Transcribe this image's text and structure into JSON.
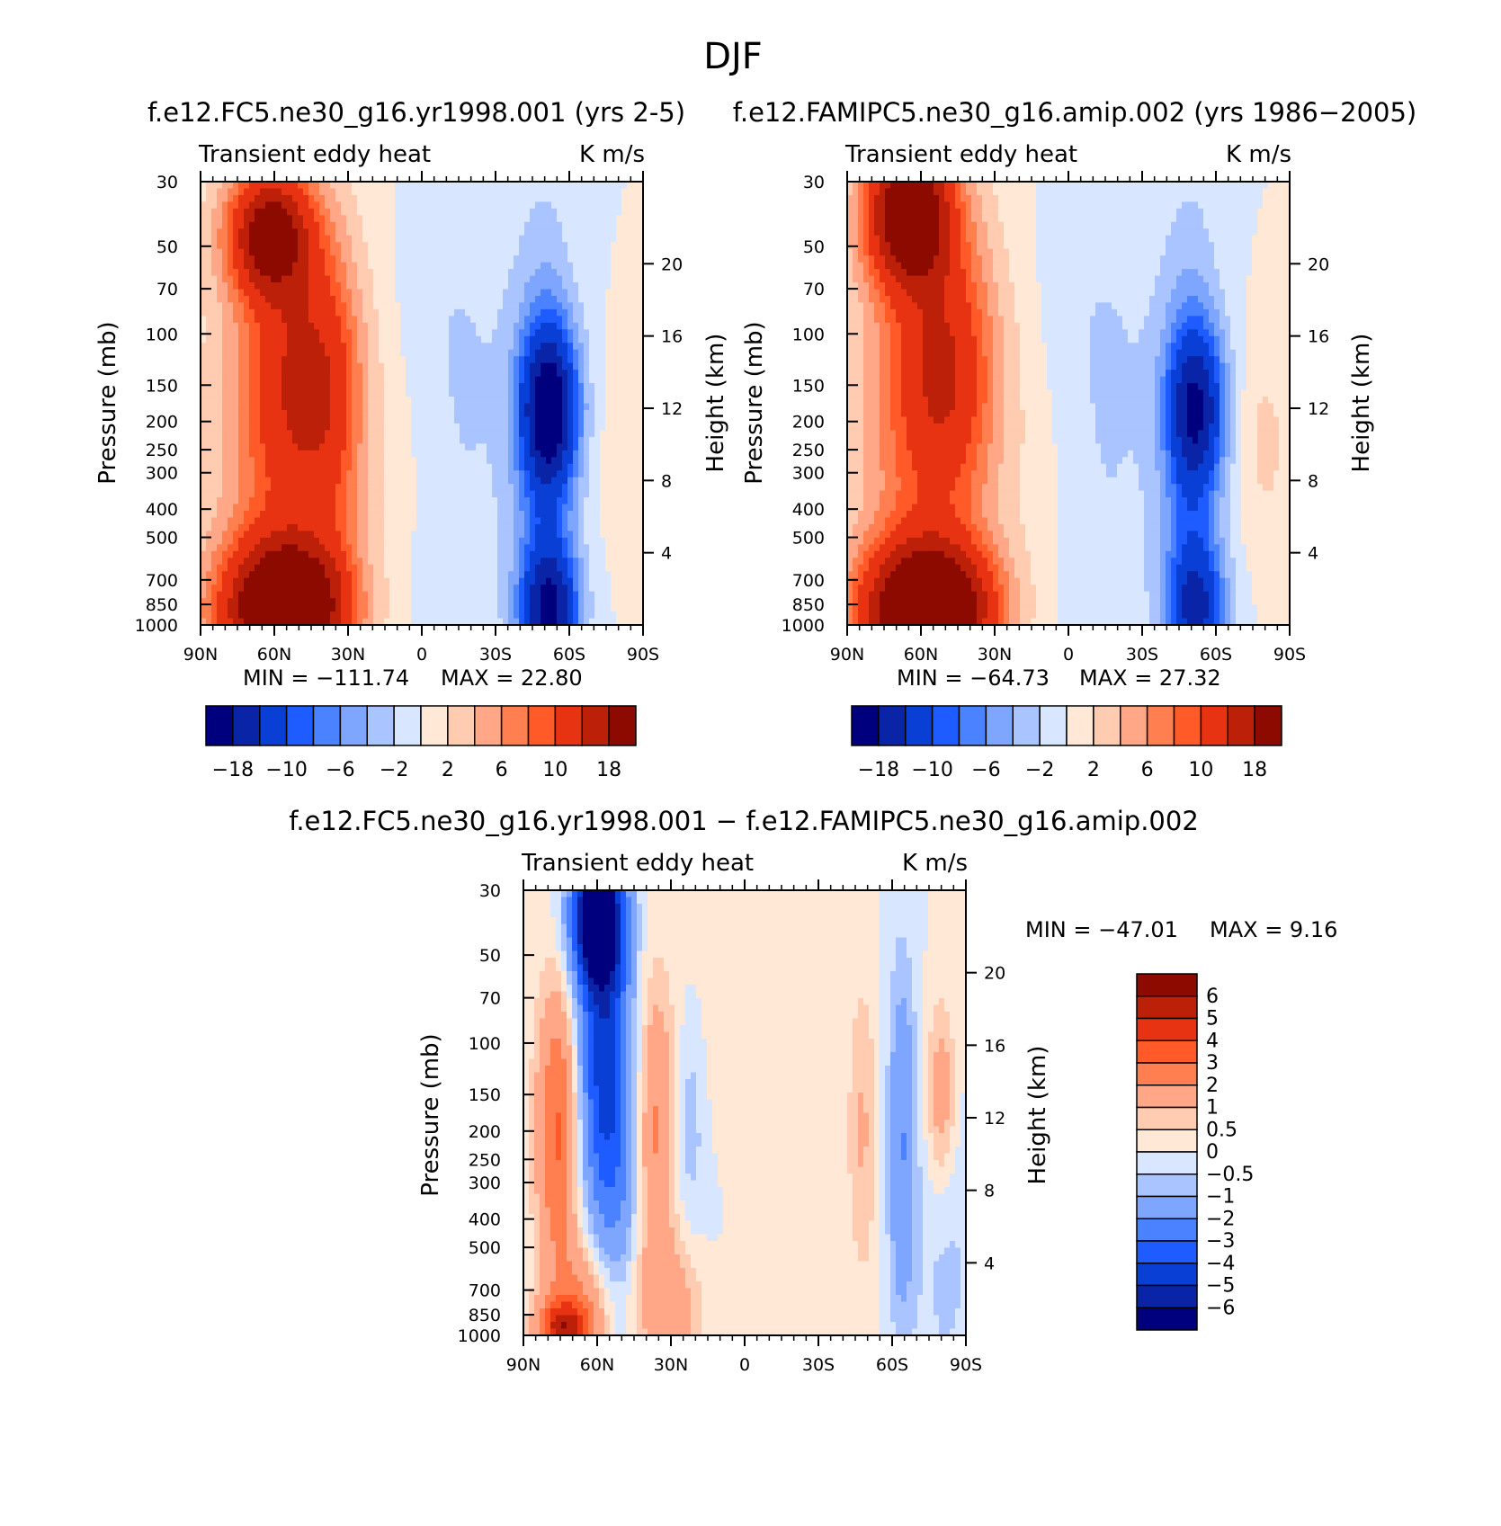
{
  "figure": {
    "title": "DJF"
  },
  "common": {
    "subtitle_left": "Transient eddy heat",
    "subtitle_right": "K m/s",
    "ylabel": "Pressure (mb)",
    "ylabel_right": "Height (km)",
    "pressure_ticks": [
      30,
      50,
      70,
      100,
      150,
      200,
      250,
      300,
      400,
      500,
      700,
      850,
      1000
    ],
    "pressure_tick_labels": [
      "30",
      "50",
      "70",
      "100",
      "150",
      "200",
      "250",
      "300",
      "400",
      "500",
      "700",
      "850",
      "1000"
    ],
    "height_ticks": [
      4,
      8,
      12,
      16,
      20
    ],
    "height_tick_labels": [
      "4",
      "8",
      "12",
      "16",
      "20"
    ],
    "lat_ticks": [
      90,
      60,
      30,
      0,
      -30,
      -60,
      -90
    ],
    "lat_tick_labels": [
      "90N",
      "60N",
      "30N",
      "0",
      "30S",
      "60S",
      "90S"
    ]
  },
  "colors": {
    "abs_scale": [
      "#00007f",
      "#0a24a8",
      "#0a3fd6",
      "#1f5cff",
      "#4a82ff",
      "#7fa6ff",
      "#a9c4ff",
      "#d8e6ff",
      "#ffe8d6",
      "#ffcbb1",
      "#ffa787",
      "#ff7f50",
      "#ff5a28",
      "#e83312",
      "#bd2009",
      "#8c0a00"
    ],
    "diff_scale": [
      "#00007f",
      "#0a24a8",
      "#0a3fd6",
      "#1f5cff",
      "#4a82ff",
      "#7fa6ff",
      "#a9c4ff",
      "#d8e6ff",
      "#ffe8d6",
      "#ffcbb1",
      "#ffa787",
      "#ff7f50",
      "#ff5a28",
      "#e83312",
      "#bd2009",
      "#8c0a00"
    ]
  },
  "chart_data": [
    {
      "type": "heatmap",
      "title": "f.e12.FC5.ne30_g16.yr1998.001 (yrs 2-5)",
      "subtitle": "Transient eddy heat",
      "units": "K m/s",
      "xlabel": "",
      "ylabel": "Pressure (mb)",
      "ylabel_right": "Height (km)",
      "x_range": [
        90,
        -90
      ],
      "y_range": [
        1000,
        30
      ],
      "y_scale": "log",
      "min_label": "MIN = −111.74",
      "max_label": "MAX = 22.80",
      "min": -111.74,
      "max": 22.8,
      "colorbar": {
        "levels": [
          -18,
          -14,
          -10,
          -8,
          -6,
          -4,
          -2,
          0,
          2,
          4,
          6,
          8,
          10,
          14,
          18
        ],
        "tick_labels": [
          "−18",
          "−10",
          "−6",
          "−2",
          "2",
          "6",
          "10",
          "18"
        ],
        "orientation": "horizontal"
      },
      "features": [
        {
          "lat": 62,
          "p": 45,
          "value": 18,
          "sx": 12,
          "sy": 0.35
        },
        {
          "lat": 55,
          "p": 300,
          "value": 7,
          "sx": 22,
          "sy": 1.6
        },
        {
          "lat": 48,
          "p": 140,
          "value": 9,
          "sx": 15,
          "sy": 0.7
        },
        {
          "lat": 52,
          "p": 880,
          "value": 16,
          "sx": 16,
          "sy": 0.35
        },
        {
          "lat": 62,
          "p": 900,
          "value": 10,
          "sx": 18,
          "sy": 0.4
        },
        {
          "lat": 36,
          "p": 200,
          "value": 3,
          "sx": 8,
          "sy": 0.9
        },
        {
          "lat": -52,
          "p": 180,
          "value": -18,
          "sx": 8,
          "sy": 0.45
        },
        {
          "lat": -52,
          "p": 880,
          "value": -16,
          "sx": 8,
          "sy": 0.35
        },
        {
          "lat": -50,
          "p": 300,
          "value": -6,
          "sx": 9,
          "sy": 1.4
        },
        {
          "lat": -12,
          "p": 100,
          "value": -2,
          "sx": 20,
          "sy": 0.9
        },
        {
          "lat": -12,
          "p": 500,
          "value": -1.5,
          "sx": 20,
          "sy": 0.9
        },
        {
          "lat": -84,
          "p": 250,
          "value": 1.6,
          "sx": 8,
          "sy": 0.6
        },
        {
          "lat": 5,
          "p": 280,
          "value": 1.2,
          "sx": 12,
          "sy": 0.8
        }
      ]
    },
    {
      "type": "heatmap",
      "title": "f.e12.FAMIPC5.ne30_g16.amip.002 (yrs 1986−2005)",
      "subtitle": "Transient eddy heat",
      "units": "K m/s",
      "xlabel": "",
      "ylabel": "Pressure (mb)",
      "ylabel_right": "Height (km)",
      "x_range": [
        90,
        -90
      ],
      "y_range": [
        1000,
        30
      ],
      "y_scale": "log",
      "min_label": "MIN = −64.73",
      "max_label": "MAX = 27.32",
      "min": -64.73,
      "max": 27.32,
      "colorbar": {
        "levels": [
          -18,
          -14,
          -10,
          -8,
          -6,
          -4,
          -2,
          0,
          2,
          4,
          6,
          8,
          10,
          14,
          18
        ],
        "tick_labels": [
          "−18",
          "−10",
          "−6",
          "−2",
          "2",
          "6",
          "10",
          "18"
        ],
        "orientation": "horizontal"
      },
      "features": [
        {
          "lat": 65,
          "p": 38,
          "value": 22,
          "sx": 12,
          "sy": 0.4
        },
        {
          "lat": 58,
          "p": 250,
          "value": 7,
          "sx": 22,
          "sy": 1.6
        },
        {
          "lat": 50,
          "p": 130,
          "value": 9,
          "sx": 14,
          "sy": 0.7
        },
        {
          "lat": 52,
          "p": 880,
          "value": 16,
          "sx": 17,
          "sy": 0.35
        },
        {
          "lat": 64,
          "p": 880,
          "value": 12,
          "sx": 17,
          "sy": 0.35
        },
        {
          "lat": -52,
          "p": 180,
          "value": -14,
          "sx": 8,
          "sy": 0.45
        },
        {
          "lat": -52,
          "p": 870,
          "value": -12,
          "sx": 8,
          "sy": 0.35
        },
        {
          "lat": -50,
          "p": 300,
          "value": -6,
          "sx": 9,
          "sy": 1.4
        },
        {
          "lat": -12,
          "p": 100,
          "value": -2,
          "sx": 20,
          "sy": 0.9
        },
        {
          "lat": -12,
          "p": 500,
          "value": -1.5,
          "sx": 20,
          "sy": 0.9
        },
        {
          "lat": -80,
          "p": 240,
          "value": 2.5,
          "sx": 8,
          "sy": 0.6
        },
        {
          "lat": 8,
          "p": 280,
          "value": 1.2,
          "sx": 12,
          "sy": 0.8
        }
      ]
    },
    {
      "type": "heatmap",
      "title": "f.e12.FC5.ne30_g16.yr1998.001 − f.e12.FAMIPC5.ne30_g16.amip.002",
      "subtitle": "Transient eddy heat",
      "units": "K m/s",
      "xlabel": "",
      "ylabel": "Pressure (mb)",
      "ylabel_right": "Height (km)",
      "x_range": [
        90,
        -90
      ],
      "y_range": [
        1000,
        30
      ],
      "y_scale": "log",
      "min_label": "MIN = −47.01",
      "max_label": "MAX = 9.16",
      "min": -47.01,
      "max": 9.16,
      "colorbar": {
        "levels": [
          -6,
          -5,
          -4,
          -3,
          -2,
          -1,
          -0.5,
          0,
          0.5,
          1,
          2,
          3,
          4,
          5,
          6
        ],
        "tick_labels": [
          "6",
          "5",
          "4",
          "3",
          "2",
          "1",
          "0.5",
          "0",
          "−0.5",
          "−1",
          "−2",
          "−3",
          "−4",
          "−5",
          "−6"
        ],
        "orientation": "vertical"
      },
      "features": [
        {
          "lat": 60,
          "p": 38,
          "value": -8,
          "sx": 7,
          "sy": 0.35
        },
        {
          "lat": 58,
          "p": 110,
          "value": -4,
          "sx": 7,
          "sy": 0.9
        },
        {
          "lat": 52,
          "p": 250,
          "value": -1.5,
          "sx": 6,
          "sy": 1.2
        },
        {
          "lat": 76,
          "p": 200,
          "value": 3.2,
          "sx": 6,
          "sy": 0.8
        },
        {
          "lat": 74,
          "p": 950,
          "value": 4.5,
          "sx": 7,
          "sy": 0.15
        },
        {
          "lat": 65,
          "p": 780,
          "value": 2,
          "sx": 10,
          "sy": 0.35
        },
        {
          "lat": 36,
          "p": 200,
          "value": 2,
          "sx": 5,
          "sy": 0.8
        },
        {
          "lat": 30,
          "p": 800,
          "value": 1.5,
          "sx": 10,
          "sy": 0.4
        },
        {
          "lat": 22,
          "p": 180,
          "value": -0.8,
          "sx": 4,
          "sy": 0.6
        },
        {
          "lat": -64,
          "p": 220,
          "value": -2,
          "sx": 4,
          "sy": 1.0
        },
        {
          "lat": -80,
          "p": 150,
          "value": 1.6,
          "sx": 4,
          "sy": 0.5
        },
        {
          "lat": -48,
          "p": 200,
          "value": 1,
          "sx": 4,
          "sy": 0.8
        },
        {
          "lat": -82,
          "p": 600,
          "value": -0.6,
          "sx": 10,
          "sy": 0.9
        },
        {
          "lat": 0,
          "p": 300,
          "value": 0.3,
          "sx": 30,
          "sy": 2.0
        },
        {
          "lat": 15,
          "p": 500,
          "value": -0.4,
          "sx": 10,
          "sy": 0.8
        }
      ]
    }
  ]
}
